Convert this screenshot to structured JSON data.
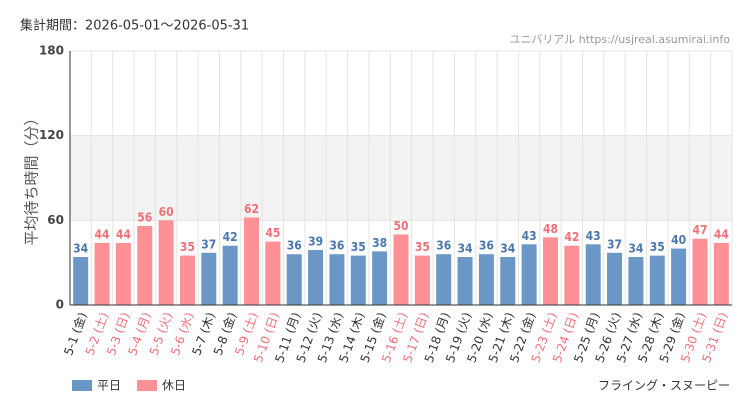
{
  "chart_data": {
    "type": "bar",
    "header": "集計期間：2026-05-01～2026-05-31",
    "source": "ユニバリアル  https://usjreal.asumirai.info",
    "ylabel": "平均待ち時間（分）",
    "footer": "フライング・スヌーピー",
    "categories": [
      "5-1 (金)",
      "5-2 (土)",
      "5-3 (日)",
      "5-4 (月)",
      "5-5 (火)",
      "5-6 (水)",
      "5-7 (木)",
      "5-8 (金)",
      "5-9 (土)",
      "5-10 (日)",
      "5-11 (月)",
      "5-12 (火)",
      "5-13 (水)",
      "5-14 (木)",
      "5-15 (金)",
      "5-16 (土)",
      "5-17 (日)",
      "5-18 (月)",
      "5-19 (火)",
      "5-20 (水)",
      "5-21 (木)",
      "5-22 (金)",
      "5-23 (土)",
      "5-24 (日)",
      "5-25 (月)",
      "5-26 (火)",
      "5-27 (水)",
      "5-28 (木)",
      "5-29 (金)",
      "5-30 (土)",
      "5-31 (日)"
    ],
    "series": [
      {
        "name": "平日",
        "color": "#6b97c6",
        "values": [
          34,
          null,
          null,
          null,
          null,
          null,
          37,
          42,
          null,
          null,
          36,
          39,
          36,
          35,
          38,
          null,
          null,
          36,
          34,
          36,
          34,
          43,
          null,
          null,
          43,
          37,
          34,
          35,
          40,
          null,
          null
        ]
      },
      {
        "name": "休日",
        "color": "#ff9096",
        "values": [
          null,
          44,
          44,
          56,
          60,
          35,
          null,
          null,
          62,
          45,
          null,
          null,
          null,
          null,
          null,
          50,
          35,
          null,
          null,
          null,
          null,
          null,
          48,
          42,
          null,
          null,
          null,
          null,
          null,
          47,
          44
        ]
      }
    ],
    "ylim": [
      0,
      180
    ],
    "yticks": [
      0,
      60,
      120,
      180
    ],
    "grid": true
  }
}
